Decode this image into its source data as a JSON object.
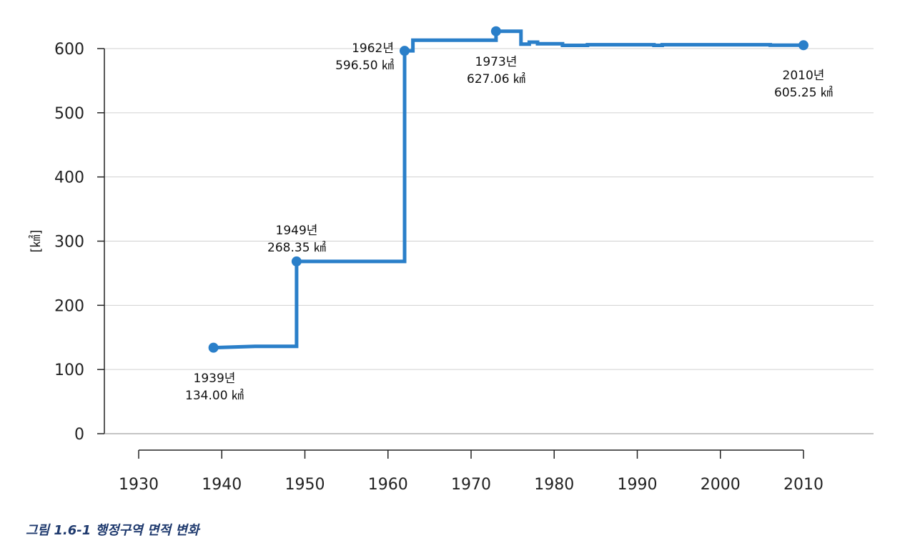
{
  "caption": "그림 1.6-1 행정구역 면적 변화",
  "colors": {
    "series": "#2a7fc9",
    "grid": "#d0d0d0",
    "axis": "#222222",
    "caption": "#1f3a6e"
  },
  "chart_data": {
    "type": "line",
    "step": true,
    "ylabel": "[㎢]",
    "xlabel": "",
    "xlim": [
      1927,
      2018
    ],
    "ylim": [
      0,
      600
    ],
    "x_ticks": [
      "1930",
      "1940",
      "1950",
      "1960",
      "1970",
      "1980",
      "1990",
      "2000",
      "2010"
    ],
    "y_ticks": [
      "0",
      "100",
      "200",
      "300",
      "400",
      "500",
      "600"
    ],
    "grid": "horizontal",
    "series": [
      {
        "x": [
          1939,
          1944,
          1949,
          1949,
          1962,
          1962,
          1963,
          1963,
          1973,
          1973,
          1976,
          1976,
          1977,
          1977,
          1978,
          1978,
          1981,
          1981,
          1984,
          1984,
          1992,
          1992,
          1993,
          1993,
          2006,
          2006,
          2010
        ],
        "y": [
          134.0,
          136.0,
          136.0,
          268.35,
          268.35,
          596.5,
          596.5,
          613.0,
          613.0,
          627.06,
          627.06,
          607.0,
          607.0,
          610.0,
          610.0,
          607.5,
          607.5,
          605.0,
          605.0,
          606.0,
          606.0,
          605.0,
          605.0,
          606.0,
          606.0,
          605.25,
          605.25
        ]
      }
    ],
    "markers": [
      {
        "x": 1939,
        "y": 134.0
      },
      {
        "x": 1949,
        "y": 268.35
      },
      {
        "x": 1962,
        "y": 596.5
      },
      {
        "x": 1973,
        "y": 627.06
      },
      {
        "x": 2010,
        "y": 605.25
      }
    ],
    "annotations": [
      {
        "year": "1939년",
        "value": "134.00 ㎢"
      },
      {
        "year": "1949년",
        "value": "268.35 ㎢"
      },
      {
        "year": "1962년",
        "value": "596.50 ㎢"
      },
      {
        "year": "1973년",
        "value": "627.06 ㎢"
      },
      {
        "year": "2010년",
        "value": "605.25 ㎢"
      }
    ]
  }
}
